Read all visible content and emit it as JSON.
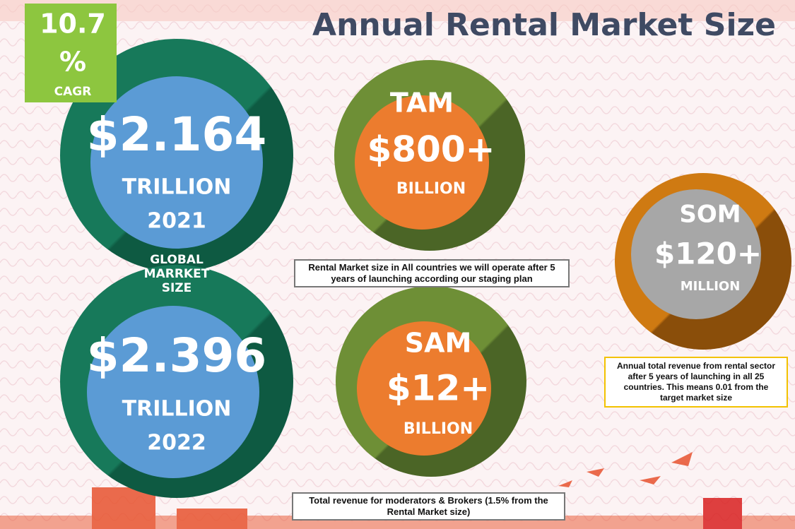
{
  "header": {
    "title": "Annual Rental Market Size"
  },
  "cagr": {
    "value": "10.7",
    "unit": "%",
    "label": "CAGR"
  },
  "global_market": {
    "label": "GLOBAL MARRKET SIZE",
    "items": [
      {
        "amount": "$2.164",
        "unit": "TRILLION",
        "year": "2021"
      },
      {
        "amount": "$2.396",
        "unit": "TRILLION",
        "year": "2022"
      }
    ]
  },
  "tam": {
    "label": "TAM",
    "amount": "$800+",
    "unit": "BILLION",
    "note": "Rental Market size in All countries we will operate after 5 years of launching according our staging plan"
  },
  "sam": {
    "label": "SAM",
    "amount": "$12+",
    "unit": "BILLION",
    "note": "Total revenue for moderators & Brokers (1.5% from the Rental Market size)"
  },
  "som": {
    "label": "SOM",
    "amount": "$120+",
    "unit": "MILLION",
    "note": "Annual total revenue from rental sector after 5 years of launching in all 25 countries. This means 0.01 from the target market size"
  }
}
